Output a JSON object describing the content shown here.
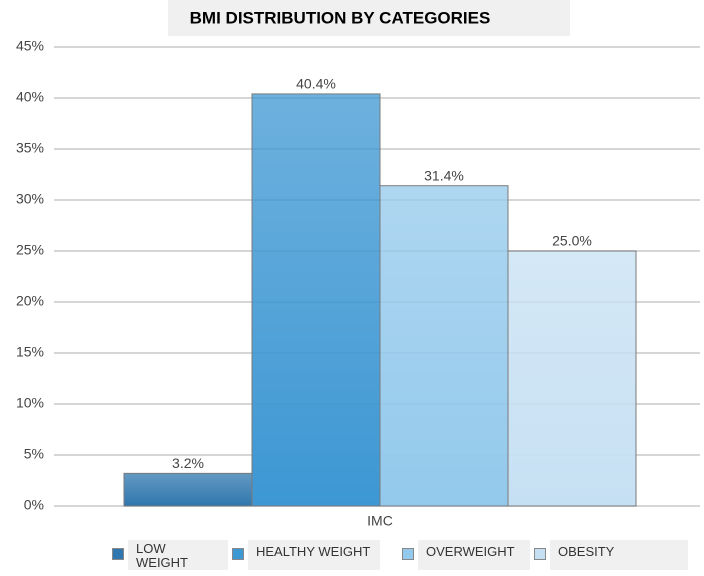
{
  "chart_data": {
    "type": "bar",
    "title": "BMI DISTRIBUTION BY CATEGORIES",
    "categories": [
      "IMC"
    ],
    "series": [
      {
        "name": "LOW WEIGHT",
        "color": "#2f77ae",
        "values": [
          3.2
        ],
        "value_labels": [
          "3.2%"
        ]
      },
      {
        "name": "HEALTHY WEIGHT",
        "color": "#3d97d3",
        "values": [
          40.4
        ],
        "value_labels": [
          "40.4%"
        ]
      },
      {
        "name": "OVERWEIGHT",
        "color": "#93c9ec",
        "values": [
          31.4
        ],
        "value_labels": [
          "31.4%"
        ]
      },
      {
        "name": "OBESITY",
        "color": "#c6e0f3",
        "values": [
          25.0
        ],
        "value_labels": [
          "25.0%"
        ]
      }
    ],
    "ylim": [
      0,
      45
    ],
    "yticks": [
      {
        "value": 0,
        "label": "0%"
      },
      {
        "value": 5,
        "label": "5%"
      },
      {
        "value": 10,
        "label": "10%"
      },
      {
        "value": 15,
        "label": "15%"
      },
      {
        "value": 20,
        "label": "20%"
      },
      {
        "value": 25,
        "label": "25%"
      },
      {
        "value": 30,
        "label": "30%"
      },
      {
        "value": 35,
        "label": "35%"
      },
      {
        "value": 40,
        "label": "40%"
      },
      {
        "value": 45,
        "label": "45%"
      }
    ],
    "grid": true
  }
}
